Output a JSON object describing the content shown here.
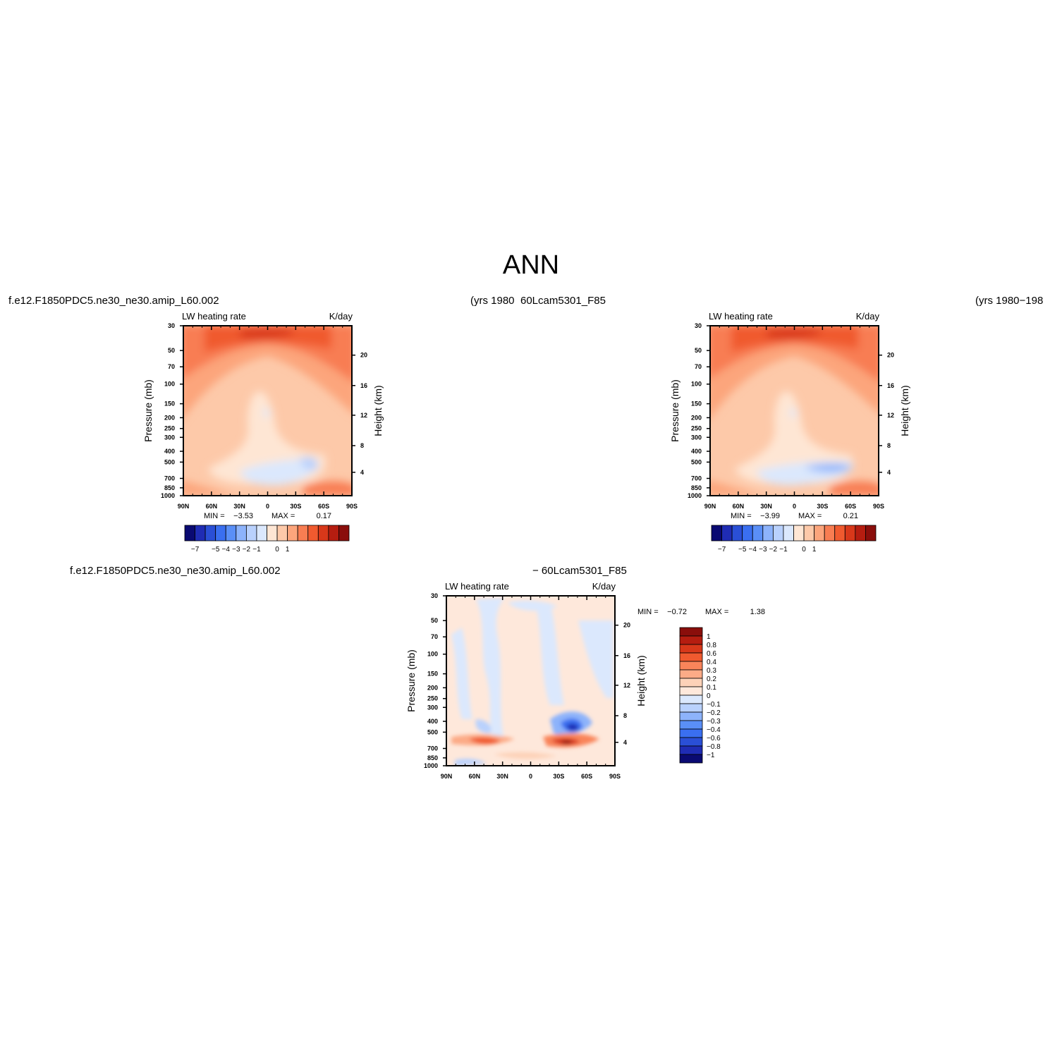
{
  "figure": {
    "title": "ANN",
    "case_title_left": "f.e12.F1850PDC5.ne30_ne30.amip_L60.002",
    "years_label_1": "(yrs  1980",
    "case_title_right": "60Lcam5301_F85",
    "years_label_2": "(yrs  1980−198",
    "diff_title_left": "f.e12.F1850PDC5.ne30_ne30.amip_L60.002",
    "diff_title_right": "−  60Lcam5301_F85"
  },
  "colors": {
    "scale_main": [
      "#0a0a72",
      "#1f2cb4",
      "#2a4fd6",
      "#3a6ff0",
      "#5a8ff7",
      "#8db3fb",
      "#b9d1fd",
      "#dbe8fd",
      "#fee6d4",
      "#fdc9a9",
      "#fca57c",
      "#f87d52",
      "#f05a2f",
      "#d8381a",
      "#b51d10",
      "#8a0e0b"
    ],
    "scale_diff": [
      "#0a0a72",
      "#1f2cb4",
      "#2a4fd6",
      "#3a6ff0",
      "#5a8ff7",
      "#8db3fb",
      "#b9d1fd",
      "#dbe8fd",
      "#fee8db",
      "#fdd2b8",
      "#fcab87",
      "#f9845a",
      "#f05a2f",
      "#d8381a",
      "#b51d10",
      "#8a0e0b"
    ]
  },
  "chart_data": [
    {
      "type": "heatmap",
      "panel": "model",
      "title_left": "LW  heating  rate",
      "title_right": "K/day",
      "xlabel": "",
      "ylabel": "Pressure  (mb)",
      "ylabel_right": "Height  (km)",
      "x_ticks": [
        "90N",
        "60N",
        "30N",
        "0",
        "30S",
        "60S",
        "90S"
      ],
      "y_ticks": [
        "30",
        "50",
        "70",
        "100",
        "150",
        "200",
        "250",
        "300",
        "400",
        "500",
        "700",
        "850",
        "1000"
      ],
      "y_right_ticks": [
        "20",
        "16",
        "12",
        "8",
        "4"
      ],
      "min_label": "MIN =",
      "min_value": "−3.53",
      "max_label": "MAX =",
      "max_value": "0.17",
      "colorbar_labels": [
        "−7",
        "−5",
        "−4",
        "−3",
        "−2",
        "−1",
        "0",
        "1"
      ]
    },
    {
      "type": "heatmap",
      "panel": "control",
      "title_left": "LW  heating  rate",
      "title_right": "K/day",
      "xlabel": "",
      "ylabel": "Pressure  (mb)",
      "ylabel_right": "Height  (km)",
      "x_ticks": [
        "90N",
        "60N",
        "30N",
        "0",
        "30S",
        "60S",
        "90S"
      ],
      "y_ticks": [
        "30",
        "50",
        "70",
        "100",
        "150",
        "200",
        "250",
        "300",
        "400",
        "500",
        "700",
        "850",
        "1000"
      ],
      "y_right_ticks": [
        "20",
        "16",
        "12",
        "8",
        "4"
      ],
      "min_label": "MIN =",
      "min_value": "−3.99",
      "max_label": "MAX =",
      "max_value": "0.21",
      "colorbar_labels": [
        "−7",
        "−5",
        "−4",
        "−3",
        "−2",
        "−1",
        "0",
        "1"
      ]
    },
    {
      "type": "heatmap",
      "panel": "difference",
      "title_left": "LW  heating  rate",
      "title_right": "K/day",
      "xlabel": "",
      "ylabel": "Pressure  (mb)",
      "ylabel_right": "Height  (km)",
      "x_ticks": [
        "90N",
        "60N",
        "30N",
        "0",
        "30S",
        "60S",
        "90S"
      ],
      "y_ticks": [
        "30",
        "50",
        "70",
        "100",
        "150",
        "200",
        "250",
        "300",
        "400",
        "500",
        "700",
        "850",
        "1000"
      ],
      "y_right_ticks": [
        "20",
        "16",
        "12",
        "8",
        "4"
      ],
      "min_label": "MIN =",
      "min_value": "−0.72",
      "max_label": "MAX =",
      "max_value": "1.38",
      "colorbar_labels": [
        "1",
        "0.8",
        "0.6",
        "0.4",
        "0.3",
        "0.2",
        "0.1",
        "0",
        "−0.1",
        "−0.2",
        "−0.3",
        "−0.4",
        "−0.6",
        "−0.8",
        "−1"
      ]
    }
  ]
}
